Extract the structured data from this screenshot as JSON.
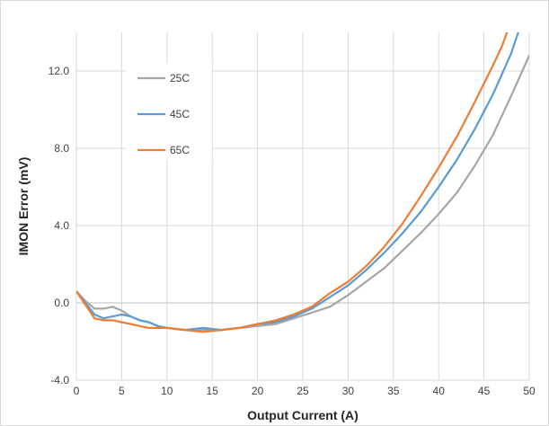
{
  "chart_data": {
    "type": "line",
    "title": "",
    "xlabel": "Output Current (A)",
    "ylabel": "IMON Error (mV)",
    "xlim": [
      0,
      50
    ],
    "ylim": [
      -4.0,
      14.0
    ],
    "x_ticks": [
      0,
      5,
      10,
      15,
      20,
      25,
      30,
      35,
      40,
      45,
      50
    ],
    "x_tick_labels": [
      "0",
      "5",
      "10",
      "15",
      "20",
      "25",
      "30",
      "35",
      "40",
      "45",
      "50"
    ],
    "y_ticks": [
      -4.0,
      0.0,
      4.0,
      8.0,
      12.0
    ],
    "y_tick_labels": [
      "-4.0",
      "0.0",
      "4.0",
      "8.0",
      "12.0"
    ],
    "grid": true,
    "legend_position": "top-left",
    "series": [
      {
        "name": "25C",
        "color": "#a6a6a6",
        "points": [
          [
            0,
            0.6
          ],
          [
            1,
            0.1
          ],
          [
            2,
            -0.3
          ],
          [
            3,
            -0.3
          ],
          [
            4,
            -0.2
          ],
          [
            5,
            -0.4
          ],
          [
            6,
            -0.7
          ],
          [
            7,
            -0.9
          ],
          [
            8,
            -1.0
          ],
          [
            9,
            -1.2
          ],
          [
            10,
            -1.3
          ],
          [
            12,
            -1.4
          ],
          [
            14,
            -1.4
          ],
          [
            16,
            -1.4
          ],
          [
            18,
            -1.3
          ],
          [
            20,
            -1.2
          ],
          [
            22,
            -1.1
          ],
          [
            24,
            -0.8
          ],
          [
            26,
            -0.5
          ],
          [
            28,
            -0.2
          ],
          [
            30,
            0.4
          ],
          [
            32,
            1.1
          ],
          [
            34,
            1.8
          ],
          [
            36,
            2.7
          ],
          [
            38,
            3.6
          ],
          [
            40,
            4.6
          ],
          [
            42,
            5.7
          ],
          [
            44,
            7.1
          ],
          [
            46,
            8.7
          ],
          [
            48,
            10.7
          ],
          [
            50,
            12.8
          ]
        ]
      },
      {
        "name": "45C",
        "color": "#5b9bd5",
        "points": [
          [
            0,
            0.6
          ],
          [
            1,
            0.0
          ],
          [
            2,
            -0.6
          ],
          [
            3,
            -0.8
          ],
          [
            4,
            -0.7
          ],
          [
            5,
            -0.6
          ],
          [
            6,
            -0.7
          ],
          [
            7,
            -0.9
          ],
          [
            8,
            -1.0
          ],
          [
            9,
            -1.2
          ],
          [
            10,
            -1.3
          ],
          [
            12,
            -1.4
          ],
          [
            14,
            -1.3
          ],
          [
            16,
            -1.4
          ],
          [
            18,
            -1.3
          ],
          [
            20,
            -1.1
          ],
          [
            22,
            -1.0
          ],
          [
            24,
            -0.7
          ],
          [
            26,
            -0.3
          ],
          [
            28,
            0.3
          ],
          [
            30,
            0.9
          ],
          [
            32,
            1.7
          ],
          [
            34,
            2.6
          ],
          [
            36,
            3.6
          ],
          [
            38,
            4.7
          ],
          [
            40,
            6.0
          ],
          [
            42,
            7.4
          ],
          [
            44,
            9.0
          ],
          [
            46,
            10.8
          ],
          [
            48,
            12.9
          ],
          [
            49,
            14.3
          ]
        ]
      },
      {
        "name": "65C",
        "color": "#ed7d31",
        "points": [
          [
            0,
            0.6
          ],
          [
            1,
            -0.1
          ],
          [
            2,
            -0.8
          ],
          [
            3,
            -0.9
          ],
          [
            4,
            -0.9
          ],
          [
            5,
            -1.0
          ],
          [
            6,
            -1.1
          ],
          [
            7,
            -1.2
          ],
          [
            8,
            -1.3
          ],
          [
            10,
            -1.3
          ],
          [
            12,
            -1.4
          ],
          [
            14,
            -1.5
          ],
          [
            16,
            -1.4
          ],
          [
            18,
            -1.3
          ],
          [
            20,
            -1.1
          ],
          [
            22,
            -0.9
          ],
          [
            24,
            -0.6
          ],
          [
            26,
            -0.2
          ],
          [
            28,
            0.5
          ],
          [
            30,
            1.1
          ],
          [
            32,
            1.9
          ],
          [
            34,
            2.9
          ],
          [
            36,
            4.1
          ],
          [
            38,
            5.5
          ],
          [
            40,
            7.0
          ],
          [
            42,
            8.6
          ],
          [
            44,
            10.4
          ],
          [
            46,
            12.3
          ],
          [
            47,
            13.3
          ],
          [
            47.7,
            14.2
          ]
        ]
      }
    ]
  }
}
